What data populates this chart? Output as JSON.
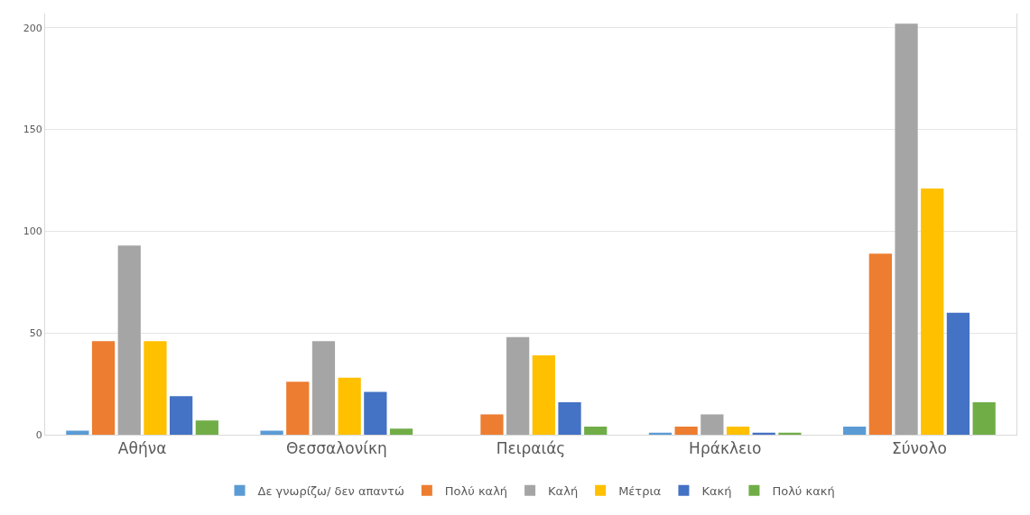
{
  "chart_data": {
    "type": "bar",
    "categories": [
      "Αθήνα",
      "Θεσσαλονίκη",
      "Πειραιάς",
      "Ηράκλειο",
      "Σύνολο"
    ],
    "series": [
      {
        "name": "Δε γνωρίζω/ δεν απαντώ",
        "color": "#5b9bd5",
        "values": [
          2,
          2,
          0,
          1,
          4
        ]
      },
      {
        "name": "Πολύ καλή",
        "color": "#ed7d31",
        "values": [
          46,
          26,
          10,
          4,
          89
        ]
      },
      {
        "name": "Καλή",
        "color": "#a5a5a5",
        "values": [
          93,
          46,
          48,
          10,
          202
        ]
      },
      {
        "name": "Μέτρια",
        "color": "#ffc000",
        "values": [
          46,
          28,
          39,
          4,
          121
        ]
      },
      {
        "name": "Κακή",
        "color": "#4472c4",
        "values": [
          19,
          21,
          16,
          1,
          60
        ]
      },
      {
        "name": "Πολύ κακή",
        "color": "#70ad47",
        "values": [
          7,
          3,
          4,
          1,
          16
        ]
      }
    ],
    "ylim": [
      0,
      207
    ],
    "yticks": [
      0,
      50,
      100,
      150,
      200
    ],
    "grid": "y",
    "legend": "bottom"
  }
}
